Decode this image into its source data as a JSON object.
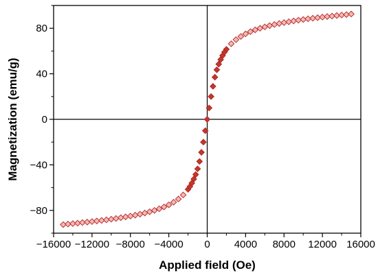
{
  "chart_data": {
    "type": "scatter",
    "title": "",
    "xlabel": "Applied field (Oe)",
    "ylabel": "Magnetization (emu/g)",
    "xlim": [
      -16000,
      16000
    ],
    "ylim": [
      -100,
      100
    ],
    "x_ticks": [
      -16000,
      -12000,
      -8000,
      -4000,
      0,
      4000,
      8000,
      12000,
      16000
    ],
    "x_tick_labels": [
      "−16000",
      "−12000",
      "−8000",
      "−4000",
      "0",
      "4000",
      "8000",
      "12000",
      "16000"
    ],
    "y_ticks": [
      -80,
      -40,
      0,
      40,
      80
    ],
    "y_tick_labels": [
      "−80",
      "−40",
      "0",
      "40",
      "80"
    ],
    "grid": false,
    "zero_lines": true,
    "marker": "diamond",
    "colors": {
      "marker_fill": "#f4b8b4",
      "marker_edge": "#b22222",
      "marker_dark": "#c0392b",
      "axis": "#000000"
    },
    "series": [
      {
        "values": [
          [
            -15000,
            -92.5
          ],
          [
            -14500,
            -92.0
          ],
          [
            -14000,
            -91.6
          ],
          [
            -13500,
            -91.2
          ],
          [
            -13000,
            -90.7
          ],
          [
            -12500,
            -90.3
          ],
          [
            -12000,
            -89.8
          ],
          [
            -11500,
            -89.3
          ],
          [
            -11000,
            -88.8
          ],
          [
            -10500,
            -88.3
          ],
          [
            -10000,
            -87.7
          ],
          [
            -9500,
            -87.1
          ],
          [
            -9000,
            -86.4
          ],
          [
            -8500,
            -85.7
          ],
          [
            -8000,
            -85.0
          ],
          [
            -7500,
            -84.2
          ],
          [
            -7000,
            -83.3
          ],
          [
            -6500,
            -82.3
          ],
          [
            -6000,
            -81.2
          ],
          [
            -5500,
            -80.0
          ],
          [
            -5000,
            -78.6
          ],
          [
            -4500,
            -77.0
          ],
          [
            -4000,
            -75.1
          ],
          [
            -3500,
            -72.8
          ],
          [
            -3000,
            -70.0
          ],
          [
            -2500,
            -66.4
          ],
          [
            -2000,
            -61.5
          ],
          [
            -1800,
            -59.0
          ],
          [
            -1600,
            -56.0
          ],
          [
            -1400,
            -52.5
          ],
          [
            -1200,
            -48.5
          ],
          [
            -1000,
            -43.5
          ],
          [
            -800,
            -37.0
          ],
          [
            -600,
            -29.0
          ],
          [
            -400,
            -20.0
          ],
          [
            -200,
            -10.0
          ],
          [
            0,
            0.0
          ],
          [
            200,
            10.0
          ],
          [
            400,
            20.0
          ],
          [
            600,
            29.0
          ],
          [
            800,
            37.0
          ],
          [
            1000,
            43.5
          ],
          [
            1200,
            48.5
          ],
          [
            1400,
            52.5
          ],
          [
            1600,
            56.0
          ],
          [
            1800,
            59.0
          ],
          [
            2000,
            61.5
          ],
          [
            2500,
            66.4
          ],
          [
            3000,
            70.0
          ],
          [
            3500,
            72.8
          ],
          [
            4000,
            75.1
          ],
          [
            4500,
            77.0
          ],
          [
            5000,
            78.6
          ],
          [
            5500,
            80.0
          ],
          [
            6000,
            81.2
          ],
          [
            6500,
            82.3
          ],
          [
            7000,
            83.3
          ],
          [
            7500,
            84.2
          ],
          [
            8000,
            85.0
          ],
          [
            8500,
            85.7
          ],
          [
            9000,
            86.4
          ],
          [
            9500,
            87.1
          ],
          [
            10000,
            87.7
          ],
          [
            10500,
            88.3
          ],
          [
            11000,
            88.8
          ],
          [
            11500,
            89.3
          ],
          [
            12000,
            89.8
          ],
          [
            12500,
            90.3
          ],
          [
            13000,
            90.7
          ],
          [
            13500,
            91.2
          ],
          [
            14000,
            91.6
          ],
          [
            14500,
            92.0
          ],
          [
            15000,
            92.5
          ]
        ]
      }
    ]
  }
}
